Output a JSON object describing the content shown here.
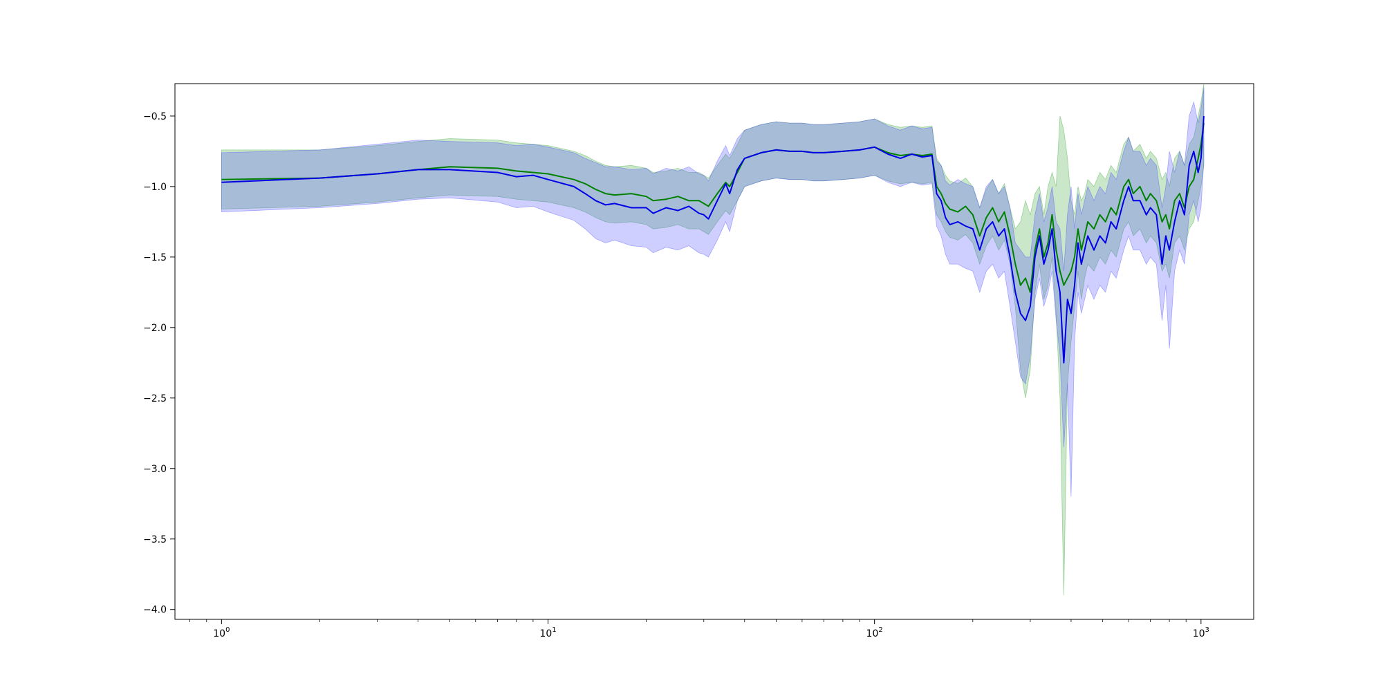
{
  "chart_data": {
    "type": "line",
    "title": "",
    "xlabel": "",
    "ylabel": "",
    "x_scale": "log",
    "xlim": [
      0.72,
      1450
    ],
    "ylim": [
      -4.07,
      -0.27
    ],
    "grid": false,
    "legend": "none",
    "x_ticks": [
      {
        "value": 1,
        "base": "10",
        "exp": "0"
      },
      {
        "value": 10,
        "base": "10",
        "exp": "1"
      },
      {
        "value": 100,
        "base": "10",
        "exp": "2"
      },
      {
        "value": 1000,
        "base": "10",
        "exp": "3"
      }
    ],
    "y_ticks": [
      {
        "value": -0.5,
        "label": "−0.5"
      },
      {
        "value": -1.0,
        "label": "−1.0"
      },
      {
        "value": -1.5,
        "label": "−1.5"
      },
      {
        "value": -2.0,
        "label": "−2.0"
      },
      {
        "value": -2.5,
        "label": "−2.5"
      },
      {
        "value": -3.0,
        "label": "−3.0"
      },
      {
        "value": -3.5,
        "label": "−3.5"
      },
      {
        "value": -4.0,
        "label": "−4.0"
      }
    ],
    "series": [
      {
        "color": "#008000",
        "band_color": "#2ca02c",
        "band_opacity": 0.25,
        "x": [
          1,
          2,
          3,
          4,
          5,
          7,
          8,
          9,
          10,
          12,
          13,
          14,
          15,
          16,
          18,
          20,
          21,
          23,
          25,
          27,
          29,
          30,
          31,
          33,
          35,
          36,
          38,
          40,
          45,
          50,
          55,
          60,
          65,
          70,
          80,
          90,
          100,
          110,
          120,
          130,
          140,
          150,
          155,
          160,
          165,
          170,
          180,
          190,
          200,
          210,
          220,
          230,
          240,
          250,
          260,
          270,
          280,
          290,
          300,
          310,
          320,
          330,
          340,
          350,
          360,
          370,
          380,
          390,
          400,
          410,
          420,
          430,
          440,
          450,
          470,
          490,
          510,
          530,
          550,
          580,
          600,
          620,
          650,
          680,
          700,
          730,
          760,
          780,
          800,
          830,
          860,
          890,
          920,
          950,
          980,
          1000,
          1020
        ],
        "y": [
          -0.95,
          -0.94,
          -0.91,
          -0.88,
          -0.86,
          -0.87,
          -0.89,
          -0.9,
          -0.91,
          -0.95,
          -0.98,
          -1.02,
          -1.05,
          -1.06,
          -1.05,
          -1.07,
          -1.1,
          -1.09,
          -1.07,
          -1.1,
          -1.1,
          -1.12,
          -1.14,
          -1.05,
          -0.97,
          -1.0,
          -0.9,
          -0.8,
          -0.76,
          -0.74,
          -0.75,
          -0.75,
          -0.76,
          -0.76,
          -0.75,
          -0.74,
          -0.72,
          -0.76,
          -0.78,
          -0.77,
          -0.78,
          -0.77,
          -1.0,
          -1.05,
          -1.12,
          -1.16,
          -1.18,
          -1.14,
          -1.2,
          -1.35,
          -1.22,
          -1.15,
          -1.25,
          -1.18,
          -1.35,
          -1.55,
          -1.7,
          -1.65,
          -1.75,
          -1.45,
          -1.3,
          -1.5,
          -1.4,
          -1.2,
          -1.45,
          -1.6,
          -1.7,
          -1.65,
          -1.6,
          -1.5,
          -1.3,
          -1.45,
          -1.35,
          -1.25,
          -1.3,
          -1.2,
          -1.25,
          -1.15,
          -1.2,
          -1.0,
          -0.95,
          -1.05,
          -1.0,
          -1.1,
          -1.05,
          -1.1,
          -1.25,
          -1.2,
          -1.3,
          -1.1,
          -1.05,
          -1.15,
          -1.0,
          -0.95,
          -0.8,
          -0.7,
          -0.55
        ],
        "y_lower": [
          -1.16,
          -1.14,
          -1.11,
          -1.08,
          -1.06,
          -1.07,
          -1.09,
          -1.1,
          -1.11,
          -1.15,
          -1.18,
          -1.22,
          -1.25,
          -1.26,
          -1.25,
          -1.27,
          -1.3,
          -1.29,
          -1.27,
          -1.3,
          -1.3,
          -1.32,
          -1.34,
          -1.25,
          -1.17,
          -1.2,
          -1.1,
          -1.0,
          -0.96,
          -0.94,
          -0.95,
          -0.95,
          -0.96,
          -0.96,
          -0.95,
          -0.94,
          -0.92,
          -0.96,
          -0.98,
          -0.97,
          -0.98,
          -0.97,
          -1.2,
          -1.25,
          -1.32,
          -1.36,
          -1.38,
          -1.34,
          -1.4,
          -1.55,
          -1.42,
          -1.35,
          -1.45,
          -1.38,
          -1.55,
          -1.85,
          -2.3,
          -2.5,
          -2.3,
          -1.75,
          -1.55,
          -1.8,
          -1.7,
          -1.5,
          -1.9,
          -2.5,
          -3.9,
          -2.4,
          -2.1,
          -1.85,
          -1.6,
          -1.8,
          -1.65,
          -1.55,
          -1.6,
          -1.5,
          -1.55,
          -1.45,
          -1.5,
          -1.3,
          -1.25,
          -1.35,
          -1.3,
          -1.4,
          -1.35,
          -1.4,
          -1.6,
          -1.55,
          -1.65,
          -1.4,
          -1.35,
          -1.45,
          -1.3,
          -1.25,
          -1.1,
          -1.0,
          -0.85
        ],
        "y_upper": [
          -0.74,
          -0.74,
          -0.71,
          -0.68,
          -0.66,
          -0.67,
          -0.69,
          -0.7,
          -0.71,
          -0.75,
          -0.78,
          -0.82,
          -0.85,
          -0.86,
          -0.85,
          -0.87,
          -0.9,
          -0.89,
          -0.87,
          -0.9,
          -0.9,
          -0.92,
          -0.94,
          -0.85,
          -0.77,
          -0.8,
          -0.7,
          -0.6,
          -0.56,
          -0.54,
          -0.55,
          -0.55,
          -0.56,
          -0.56,
          -0.55,
          -0.54,
          -0.52,
          -0.56,
          -0.58,
          -0.57,
          -0.58,
          -0.57,
          -0.8,
          -0.85,
          -0.92,
          -0.96,
          -0.98,
          -0.94,
          -1.0,
          -1.15,
          -1.02,
          -0.95,
          -1.05,
          -0.98,
          -1.15,
          -1.3,
          -1.25,
          -1.1,
          -1.2,
          -1.05,
          -1.0,
          -1.2,
          -1.0,
          -0.9,
          -1.0,
          -0.5,
          -0.6,
          -0.8,
          -1.1,
          -1.2,
          -1.0,
          -1.1,
          -1.05,
          -0.95,
          -1.0,
          -0.9,
          -0.95,
          -0.85,
          -0.9,
          -0.7,
          -0.65,
          -0.75,
          -0.7,
          -0.8,
          -0.75,
          -0.8,
          -0.95,
          -0.9,
          -1.0,
          -0.8,
          -0.75,
          -0.85,
          -0.7,
          -0.65,
          -0.5,
          -0.4,
          -0.27
        ]
      },
      {
        "color": "#0000e6",
        "band_color": "#4040ff",
        "band_opacity": 0.25,
        "x": [
          1,
          2,
          3,
          4,
          5,
          7,
          8,
          9,
          10,
          12,
          13,
          14,
          15,
          16,
          18,
          20,
          21,
          23,
          25,
          27,
          29,
          30,
          31,
          33,
          35,
          36,
          38,
          40,
          45,
          50,
          55,
          60,
          65,
          70,
          80,
          90,
          100,
          110,
          120,
          130,
          140,
          150,
          155,
          160,
          165,
          170,
          180,
          190,
          200,
          210,
          220,
          230,
          240,
          250,
          260,
          270,
          280,
          290,
          300,
          310,
          320,
          330,
          340,
          350,
          360,
          370,
          380,
          390,
          400,
          410,
          420,
          430,
          440,
          450,
          470,
          490,
          510,
          530,
          550,
          580,
          600,
          620,
          650,
          680,
          700,
          730,
          760,
          780,
          800,
          830,
          860,
          890,
          920,
          950,
          980,
          1000,
          1020
        ],
        "y": [
          -0.97,
          -0.94,
          -0.91,
          -0.88,
          -0.88,
          -0.9,
          -0.93,
          -0.92,
          -0.95,
          -1.0,
          -1.05,
          -1.1,
          -1.13,
          -1.12,
          -1.15,
          -1.15,
          -1.19,
          -1.15,
          -1.17,
          -1.14,
          -1.19,
          -1.2,
          -1.23,
          -1.1,
          -0.98,
          -1.05,
          -0.88,
          -0.8,
          -0.76,
          -0.74,
          -0.75,
          -0.75,
          -0.76,
          -0.76,
          -0.75,
          -0.74,
          -0.72,
          -0.77,
          -0.8,
          -0.77,
          -0.79,
          -0.78,
          -1.05,
          -1.1,
          -1.22,
          -1.27,
          -1.25,
          -1.28,
          -1.3,
          -1.45,
          -1.3,
          -1.25,
          -1.35,
          -1.3,
          -1.5,
          -1.75,
          -1.9,
          -1.95,
          -1.85,
          -1.5,
          -1.35,
          -1.55,
          -1.45,
          -1.3,
          -1.6,
          -1.75,
          -2.25,
          -1.8,
          -1.9,
          -1.7,
          -1.4,
          -1.55,
          -1.45,
          -1.35,
          -1.45,
          -1.35,
          -1.4,
          -1.25,
          -1.3,
          -1.1,
          -1.0,
          -1.1,
          -1.1,
          -1.2,
          -1.15,
          -1.2,
          -1.55,
          -1.35,
          -1.45,
          -1.25,
          -1.1,
          -1.2,
          -0.85,
          -0.75,
          -0.9,
          -0.8,
          -0.5
        ],
        "y_lower": [
          -1.18,
          -1.15,
          -1.12,
          -1.09,
          -1.08,
          -1.11,
          -1.15,
          -1.14,
          -1.18,
          -1.24,
          -1.3,
          -1.37,
          -1.4,
          -1.38,
          -1.42,
          -1.43,
          -1.47,
          -1.43,
          -1.45,
          -1.42,
          -1.47,
          -1.48,
          -1.5,
          -1.38,
          -1.25,
          -1.32,
          -1.1,
          -1.0,
          -0.96,
          -0.94,
          -0.95,
          -0.95,
          -0.96,
          -0.96,
          -0.95,
          -0.94,
          -0.92,
          -0.97,
          -1.0,
          -0.97,
          -0.99,
          -0.98,
          -1.28,
          -1.35,
          -1.48,
          -1.55,
          -1.55,
          -1.58,
          -1.6,
          -1.75,
          -1.6,
          -1.55,
          -1.65,
          -1.6,
          -1.85,
          -2.1,
          -2.35,
          -2.4,
          -2.2,
          -1.8,
          -1.65,
          -1.85,
          -1.75,
          -1.6,
          -1.95,
          -2.2,
          -2.85,
          -2.4,
          -3.2,
          -2.1,
          -1.75,
          -1.9,
          -1.8,
          -1.7,
          -1.8,
          -1.7,
          -1.75,
          -1.6,
          -1.65,
          -1.45,
          -1.35,
          -1.45,
          -1.45,
          -1.55,
          -1.5,
          -1.55,
          -1.95,
          -1.7,
          -2.15,
          -1.6,
          -1.45,
          -1.55,
          -1.2,
          -1.1,
          -1.25,
          -1.15,
          -0.82
        ],
        "y_upper": [
          -0.76,
          -0.74,
          -0.7,
          -0.67,
          -0.68,
          -0.69,
          -0.71,
          -0.7,
          -0.72,
          -0.76,
          -0.8,
          -0.83,
          -0.86,
          -0.86,
          -0.88,
          -0.87,
          -0.91,
          -0.87,
          -0.89,
          -0.86,
          -0.91,
          -0.92,
          -0.96,
          -0.82,
          -0.71,
          -0.78,
          -0.66,
          -0.6,
          -0.56,
          -0.54,
          -0.55,
          -0.55,
          -0.56,
          -0.56,
          -0.55,
          -0.54,
          -0.52,
          -0.57,
          -0.6,
          -0.57,
          -0.59,
          -0.58,
          -0.82,
          -0.85,
          -0.96,
          -0.99,
          -0.95,
          -0.98,
          -1.0,
          -1.15,
          -1.0,
          -0.95,
          -1.05,
          -1.0,
          -1.15,
          -1.4,
          -1.45,
          -1.5,
          -1.5,
          -1.2,
          -1.05,
          -1.25,
          -1.15,
          -1.0,
          -1.25,
          -1.3,
          -1.6,
          -1.2,
          -1.0,
          -1.3,
          -1.05,
          -1.2,
          -1.1,
          -1.0,
          -1.1,
          -1.0,
          -1.05,
          -0.9,
          -0.95,
          -0.75,
          -0.65,
          -0.75,
          -0.75,
          -0.85,
          -0.8,
          -0.85,
          -1.15,
          -1.0,
          -0.75,
          -0.9,
          -0.75,
          -0.85,
          -0.5,
          -0.4,
          -0.55,
          -0.45,
          -0.3
        ]
      }
    ]
  }
}
